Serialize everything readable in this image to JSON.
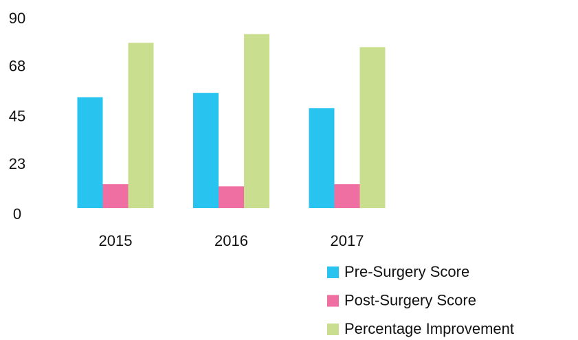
{
  "chart_data": {
    "type": "bar",
    "categories": [
      "2015",
      "2016",
      "2017"
    ],
    "series": [
      {
        "name": "Pre-Surgery Score",
        "color": "#29c3ef",
        "values": [
          51,
          53,
          46
        ]
      },
      {
        "name": "Post-Surgery Score",
        "color": "#ef6fa3",
        "values": [
          11,
          10,
          11
        ]
      },
      {
        "name": "Percentage Improvement",
        "color": "#c9df8f",
        "values": [
          76,
          80,
          74
        ]
      }
    ],
    "ylim": [
      0,
      90
    ],
    "yticks": [
      0,
      23,
      45,
      68,
      90
    ],
    "grid": false,
    "legend": "bottom-right"
  }
}
